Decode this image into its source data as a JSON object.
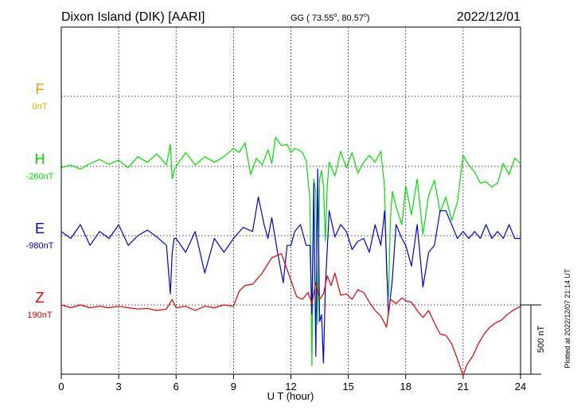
{
  "chart_data": {
    "type": "line",
    "title": "Dixon Island (DIK)  [AARI]",
    "coords_prefix": "GG ( 73.55",
    "coords_mid": ",  80.57",
    "coords_suffix": ")",
    "date": "2022/12/01",
    "xlabel": "U T (hour)",
    "xlim": [
      0,
      24
    ],
    "xticks": [
      "0",
      "3",
      "6",
      "9",
      "12",
      "15",
      "18",
      "21",
      "24"
    ],
    "grid": true,
    "scale_label": "500 nT",
    "plotted_note": "Plotted at 2022/12/07 21:14 UT",
    "series": [
      {
        "name": "F",
        "offset_label": "0nT",
        "color": "#f0a000",
        "x": [],
        "y": []
      },
      {
        "name": "H",
        "offset_label": "-260nT",
        "color": "#00e000",
        "x": [
          0,
          0.5,
          1,
          1.5,
          2,
          2.5,
          3,
          3.5,
          4,
          4.5,
          5,
          5.5,
          5.7,
          5.8,
          5.9,
          6,
          6.5,
          7,
          7.5,
          8,
          8.5,
          9,
          9.3,
          9.6,
          9.9,
          10.2,
          10.5,
          10.8,
          11,
          11.2,
          11.5,
          11.8,
          12,
          12.2,
          12.4,
          12.6,
          12.8,
          13,
          13.1,
          13.2,
          13.3,
          13.4,
          13.5,
          13.6,
          13.7,
          13.8,
          13.9,
          14,
          14.3,
          14.6,
          14.9,
          15.2,
          15.5,
          15.8,
          16.1,
          16.4,
          16.7,
          16.9,
          17,
          17.1,
          17.2,
          17.3,
          17.5,
          17.8,
          18,
          18.3,
          18.6,
          18.9,
          19.2,
          19.5,
          19.8,
          20.1,
          20.4,
          20.7,
          21,
          21.3,
          21.6,
          21.9,
          22.2,
          22.5,
          22.8,
          23.1,
          23.4,
          23.7,
          24
        ],
        "y": [
          -270,
          -250,
          -280,
          -240,
          -210,
          -245,
          -215,
          -270,
          -190,
          -230,
          -170,
          -250,
          -100,
          -350,
          -290,
          -260,
          -160,
          -250,
          -190,
          -230,
          -190,
          -130,
          -160,
          -90,
          -320,
          -200,
          -250,
          -140,
          -240,
          -50,
          -110,
          -100,
          -160,
          -130,
          -140,
          -160,
          -220,
          -500,
          -1700,
          -350,
          -450,
          -1400,
          -350,
          -290,
          -400,
          -800,
          -400,
          -230,
          -330,
          -150,
          -270,
          -160,
          -310,
          -230,
          -180,
          -230,
          -150,
          -420,
          -1020,
          -1200,
          -650,
          -440,
          -550,
          -680,
          -400,
          -610,
          -350,
          -750,
          -470,
          -360,
          -590,
          -480,
          -650,
          -520,
          -180,
          -250,
          -300,
          -380,
          -370,
          -410,
          -380,
          -240,
          -320,
          -200,
          -240
        ]
      },
      {
        "name": "E",
        "offset_label": "-980nT",
        "color": "#0000e0",
        "x": [
          0,
          0.5,
          1,
          1.5,
          2,
          2.5,
          3,
          3.5,
          4,
          4.5,
          5,
          5.5,
          5.7,
          5.8,
          5.9,
          6,
          6.5,
          7,
          7.5,
          8,
          8.5,
          9,
          9.5,
          10,
          10.3,
          10.6,
          10.8,
          11,
          11.3,
          11.6,
          11.8,
          12,
          12.2,
          12.5,
          12.8,
          13,
          13.1,
          13.2,
          13.3,
          13.4,
          13.5,
          13.6,
          13.7,
          13.8,
          14,
          14.3,
          14.6,
          14.9,
          15.2,
          15.5,
          15.8,
          16.1,
          16.4,
          16.7,
          16.9,
          17.1,
          17.3,
          17.5,
          17.8,
          18,
          18.3,
          18.6,
          18.9,
          19.2,
          19.5,
          19.8,
          20.1,
          20.4,
          20.7,
          21,
          21.3,
          21.6,
          21.9,
          22.2,
          22.5,
          22.8,
          23.1,
          23.4,
          23.7,
          24
        ],
        "y": [
          -950,
          -1000,
          -900,
          -1050,
          -950,
          -1000,
          -900,
          -1050,
          -980,
          -940,
          -990,
          -1050,
          -1400,
          -1100,
          -1000,
          -1000,
          -1100,
          -950,
          -1250,
          -1000,
          -1100,
          -1000,
          -920,
          -950,
          -700,
          -900,
          -1000,
          -850,
          -1100,
          -1320,
          -1050,
          -1050,
          -950,
          -900,
          -1050,
          -1050,
          -1550,
          -600,
          -1850,
          -500,
          -1600,
          -1550,
          -1900,
          -1350,
          -800,
          -990,
          -900,
          -950,
          -1080,
          -1020,
          -1000,
          -1100,
          -900,
          -1050,
          -800,
          -1550,
          -1300,
          -900,
          -1000,
          -1050,
          -1200,
          -900,
          -1350,
          -1100,
          -1050,
          -800,
          -800,
          -900,
          -1000,
          -950,
          -1000,
          -950,
          -1000,
          -900,
          -1000,
          -950,
          -1000,
          -900,
          -1000,
          -1000
        ]
      },
      {
        "name": "Z",
        "offset_label": "190nT",
        "color": "#e00000",
        "x": [
          0,
          0.5,
          1,
          1.5,
          2,
          2.5,
          3,
          3.5,
          4,
          4.5,
          5,
          5.5,
          5.8,
          6,
          6.5,
          7,
          7.5,
          8,
          8.5,
          9,
          9.3,
          9.6,
          10,
          10.5,
          11,
          11.5,
          12,
          12.3,
          12.6,
          12.9,
          13.1,
          13.3,
          13.5,
          13.7,
          13.9,
          14.1,
          14.3,
          14.6,
          14.9,
          15.2,
          15.5,
          15.8,
          16.1,
          16.4,
          16.7,
          17,
          17.2,
          17.5,
          17.8,
          18,
          18.3,
          18.6,
          18.9,
          19.2,
          19.5,
          19.8,
          20.1,
          20.4,
          20.7,
          21,
          21.2,
          21.5,
          21.8,
          22.1,
          22.4,
          22.7,
          23,
          23.3,
          23.6,
          24
        ],
        "y": [
          190,
          170,
          190,
          170,
          180,
          170,
          180,
          170,
          160,
          165,
          150,
          160,
          230,
          170,
          180,
          150,
          180,
          170,
          190,
          180,
          290,
          330,
          340,
          420,
          530,
          560,
          370,
          250,
          230,
          280,
          200,
          350,
          230,
          270,
          400,
          330,
          420,
          260,
          270,
          230,
          300,
          280,
          210,
          150,
          110,
          30,
          230,
          200,
          240,
          220,
          210,
          150,
          100,
          150,
          60,
          -20,
          -30,
          -90,
          -200,
          -320,
          -240,
          -180,
          -90,
          -20,
          30,
          60,
          80,
          120,
          150,
          180
        ]
      }
    ]
  }
}
